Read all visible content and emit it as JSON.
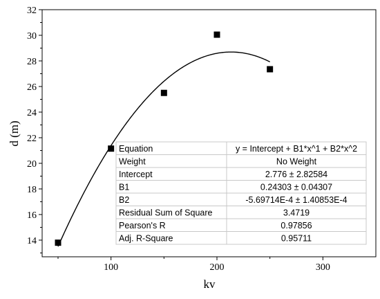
{
  "chart_data": {
    "type": "scatter",
    "xlabel": "kv",
    "ylabel": "d (m)",
    "xlim": [
      35,
      350
    ],
    "ylim": [
      12.7,
      32
    ],
    "xticks": [
      100,
      200,
      300
    ],
    "yticks": [
      14,
      16,
      18,
      20,
      22,
      24,
      26,
      28,
      30,
      32
    ],
    "points": [
      {
        "x": 50,
        "y": 13.8
      },
      {
        "x": 100,
        "y": 21.15
      },
      {
        "x": 150,
        "y": 25.5
      },
      {
        "x": 200,
        "y": 30.05
      },
      {
        "x": 250,
        "y": 27.35
      }
    ],
    "fit": {
      "model": "polynomial-2",
      "intercept": 2.776,
      "b1": 0.24303,
      "b2": -0.000569714,
      "x_range": [
        50,
        250
      ]
    },
    "colors": {
      "points": "#000000",
      "fit_line": "#000000",
      "table_border": "#c8c8c8"
    },
    "marker": "square",
    "grid": false,
    "legend": "none"
  },
  "fit_table": [
    {
      "label": "Equation",
      "value": "y = Intercept + B1*x^1 + B2*x^2"
    },
    {
      "label": "Weight",
      "value": "No Weight"
    },
    {
      "label": "Intercept",
      "value": "2.776 ± 2.82584"
    },
    {
      "label": "B1",
      "value": "0.24303 ± 0.04307"
    },
    {
      "label": "B2",
      "value": "-5.69714E-4 ± 1.40853E-4"
    },
    {
      "label": "Residual Sum of Square",
      "value": "3.4719"
    },
    {
      "label": "Pearson's R",
      "value": "0.97856"
    },
    {
      "label": "Adj. R-Square",
      "value": "0.95711"
    }
  ]
}
